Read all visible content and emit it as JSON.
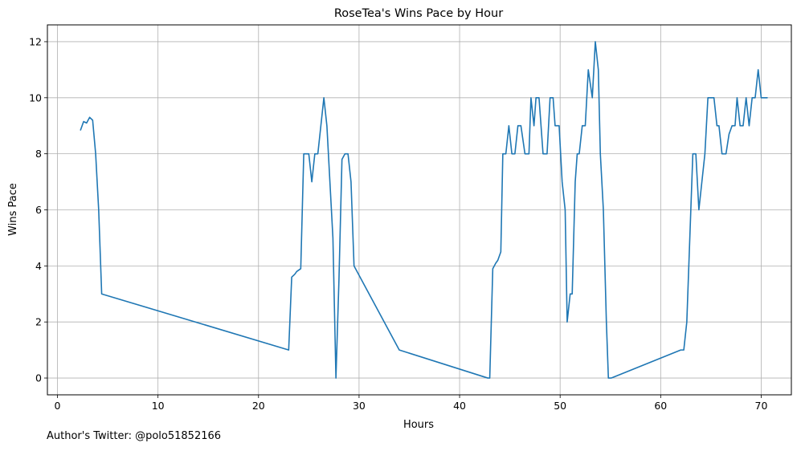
{
  "chart_data": {
    "type": "line",
    "title": "RoseTea's Wins Pace by Hour",
    "xlabel": "Hours",
    "ylabel": "Wins Pace",
    "xlim": [
      -1,
      73
    ],
    "ylim": [
      -0.6,
      12.6
    ],
    "xticks": [
      0,
      10,
      20,
      30,
      40,
      50,
      60,
      70
    ],
    "yticks": [
      0,
      2,
      4,
      6,
      8,
      10,
      12
    ],
    "grid": true,
    "series": [
      {
        "color": "#1f77b4",
        "x": [
          2.3,
          2.6,
          2.9,
          3.2,
          3.5,
          3.8,
          4.1,
          4.4,
          23.0,
          23.3,
          23.6,
          23.8,
          24.2,
          24.5,
          24.7,
          25.0,
          25.3,
          25.6,
          25.9,
          26.2,
          26.5,
          26.8,
          27.1,
          27.4,
          27.7,
          28.0,
          28.3,
          28.6,
          28.9,
          29.2,
          29.5,
          34.0,
          42.8,
          43.0,
          43.3,
          43.6,
          43.8,
          44.1,
          44.3,
          44.6,
          44.9,
          45.2,
          45.5,
          45.8,
          46.1,
          46.5,
          46.7,
          46.9,
          47.1,
          47.4,
          47.6,
          47.9,
          48.3,
          48.7,
          49.0,
          49.3,
          49.5,
          49.9,
          50.2,
          50.5,
          50.7,
          51.0,
          51.2,
          51.5,
          51.7,
          51.9,
          52.2,
          52.5,
          52.8,
          53.2,
          53.5,
          53.8,
          54.0,
          54.3,
          54.6,
          54.8,
          55.1,
          62.0,
          62.3,
          62.6,
          62.9,
          63.2,
          63.5,
          63.8,
          64.1,
          64.4,
          64.7,
          65.0,
          65.3,
          65.6,
          65.8,
          66.1,
          66.5,
          66.8,
          67.1,
          67.4,
          67.6,
          67.9,
          68.2,
          68.5,
          68.8,
          69.1,
          69.4,
          69.7,
          70.0,
          70.3,
          70.6
        ],
        "y": [
          8.85,
          9.15,
          9.1,
          9.3,
          9.2,
          8.0,
          6.0,
          3.0,
          1.0,
          3.6,
          3.7,
          3.8,
          3.9,
          8.0,
          8.0,
          8.0,
          7.0,
          8.0,
          8.0,
          9.0,
          10.0,
          9.0,
          7.0,
          5.0,
          0.0,
          3.5,
          7.8,
          8.0,
          8.0,
          7.0,
          4.0,
          1.0,
          0.0,
          0.0,
          3.9,
          4.1,
          4.2,
          4.5,
          8.0,
          8.0,
          9.0,
          8.0,
          8.0,
          9.0,
          9.0,
          8.0,
          8.0,
          8.0,
          10.0,
          9.0,
          10.0,
          10.0,
          8.0,
          8.0,
          10.0,
          10.0,
          9.0,
          9.0,
          7.0,
          6.0,
          2.0,
          3.0,
          3.0,
          7.0,
          8.0,
          8.0,
          9.0,
          9.0,
          11.0,
          10.0,
          12.0,
          11.0,
          8.0,
          6.0,
          2.0,
          0.0,
          0.0,
          1.0,
          1.0,
          2.0,
          5.0,
          8.0,
          8.0,
          6.0,
          7.0,
          8.0,
          10.0,
          10.0,
          10.0,
          9.0,
          9.0,
          8.0,
          8.0,
          8.7,
          9.0,
          9.0,
          10.0,
          9.0,
          9.0,
          10.0,
          9.0,
          10.0,
          10.0,
          11.0,
          10.0,
          10.0,
          10.0
        ]
      }
    ]
  },
  "footer_note": "Author's Twitter: @polo51852166"
}
